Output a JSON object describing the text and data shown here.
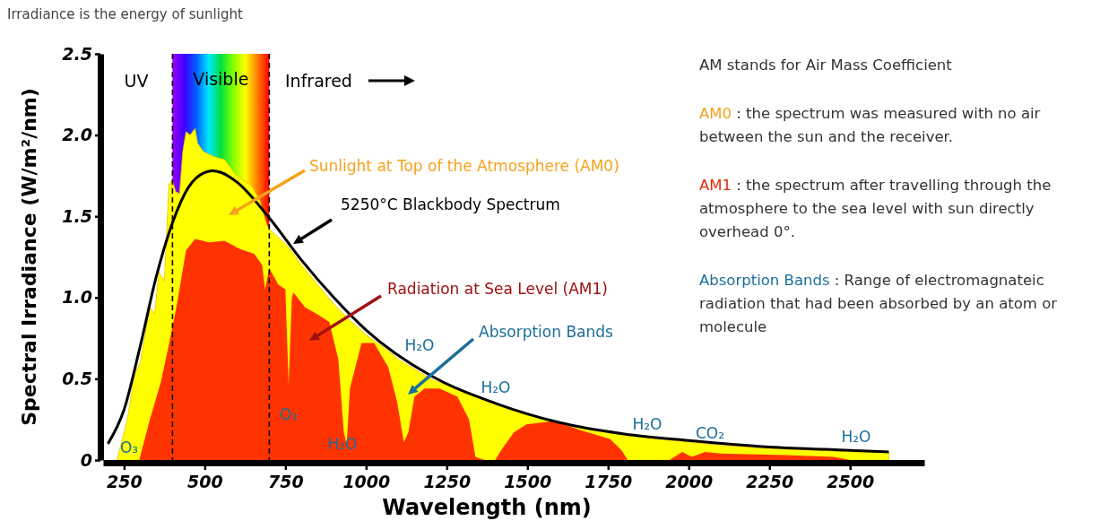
{
  "chart_data": {
    "type": "area",
    "title": "Irradiance is the energy of sunlight",
    "xlabel": "Wavelength (nm)",
    "ylabel": "Spectral Irradiance (W/m²/nm)",
    "xlim": [
      185,
      2730
    ],
    "xticks": [
      250,
      500,
      750,
      1000,
      1250,
      1500,
      1750,
      2000,
      2250,
      2500
    ],
    "ylim": [
      0,
      2.5
    ],
    "yticks": [
      0,
      {
        "value": 0.5,
        "label": "0.5"
      },
      {
        "value": 1,
        "label": "1.0"
      },
      {
        "value": 1.5,
        "label": "1.5"
      },
      {
        "value": 2,
        "label": "2.0"
      },
      {
        "value": 2.5,
        "label": "2.5"
      }
    ],
    "bands": [
      {
        "axis": "x",
        "from": 400,
        "to": 700,
        "label": "Visible"
      }
    ],
    "ref_lines": [
      {
        "axis": "x",
        "value": 400,
        "line_style": "dashed"
      },
      {
        "axis": "x",
        "value": 700,
        "line_style": "dashed"
      }
    ],
    "series": [
      {
        "color": "#ffff00",
        "x": [
          228,
          260,
          283,
          300,
          330,
          345,
          358,
          375,
          389,
          400,
          410,
          422,
          432,
          442,
          455,
          470,
          478,
          495,
          514,
          540,
          561,
          580,
          597,
          620,
          644,
          670,
          692,
          700,
          756,
          800,
          850,
          900,
          950,
          1000,
          1070,
          1100,
          1150,
          1200,
          1300,
          1400,
          1500,
          1600,
          1700,
          1800,
          1900,
          2000,
          2100,
          2250,
          2400,
          2500,
          2620
        ],
        "values": [
          0,
          0.25,
          0.53,
          0.6,
          0.94,
          0.9,
          1.16,
          1.1,
          1.7,
          1.72,
          1.65,
          1.64,
          1.9,
          2.02,
          2.0,
          2.04,
          1.95,
          1.9,
          1.88,
          1.86,
          1.85,
          1.8,
          1.75,
          1.72,
          1.69,
          1.6,
          1.45,
          1.42,
          1.32,
          1.2,
          1.08,
          0.96,
          0.86,
          0.77,
          0.67,
          0.62,
          0.56,
          0.5,
          0.42,
          0.34,
          0.28,
          0.23,
          0.19,
          0.16,
          0.13,
          0.11,
          0.09,
          0.07,
          0.06,
          0.05,
          0.05
        ]
      },
      {
        "color": "#ff3300",
        "x": [
          297,
          330,
          364,
          390,
          414,
          442,
          470,
          514,
          561,
          608,
          653,
          678,
          687,
          700,
          728,
          750,
          760,
          770,
          775,
          811,
          847,
          886,
          914,
          931,
          940,
          950,
          986,
          1025,
          1069,
          1097,
          1117,
          1131,
          1150,
          1181,
          1228,
          1283,
          1319,
          1339,
          1367,
          1400,
          1422,
          1458,
          1497,
          1581,
          1672,
          1756,
          1792,
          1811,
          1940,
          1980,
          2010,
          2050,
          2100,
          2300,
          2450,
          2500
        ],
        "values": [
          0,
          0.25,
          0.48,
          0.72,
          0.96,
          1.29,
          1.36,
          1.34,
          1.35,
          1.3,
          1.27,
          1.2,
          1.05,
          1.18,
          1.08,
          1.05,
          0.46,
          1.0,
          1.03,
          0.94,
          0.9,
          0.85,
          0.62,
          0.17,
          0.1,
          0.44,
          0.72,
          0.72,
          0.57,
          0.35,
          0.11,
          0.17,
          0.39,
          0.44,
          0.44,
          0.39,
          0.25,
          0.02,
          0,
          0,
          0.07,
          0.17,
          0.22,
          0.24,
          0.18,
          0.13,
          0.06,
          0,
          0,
          0.05,
          0.02,
          0.05,
          0.04,
          0.03,
          0.02,
          0
        ]
      },
      {
        "type": "line",
        "color": "#000000",
        "x": [
          200,
          250,
          300,
          350,
          400,
          450,
          500,
          525,
          550,
          600,
          700,
          800,
          900,
          1000,
          1200,
          1400,
          1600,
          1800,
          2000,
          2250,
          2500,
          2620
        ],
        "values": [
          0.1,
          0.31,
          0.7,
          1.13,
          1.46,
          1.68,
          1.77,
          1.78,
          1.77,
          1.71,
          1.49,
          1.23,
          1.0,
          0.8,
          0.52,
          0.35,
          0.23,
          0.16,
          0.12,
          0.08,
          0.06,
          0.05
        ]
      }
    ],
    "annotations": [
      "UV",
      "Infrared",
      "Sunlight at Top of the Atmosphere (AM0)",
      "5250°C Blackbody Spectrum",
      "Radiation at Sea Level (AM1)",
      "Absorption Bands",
      "O₃",
      "O₂",
      "H₂O",
      "H₂O",
      "H₂O",
      "H₂O",
      "CO₂",
      "H₂O",
      "AM stands for Air Mass Coefficient",
      "AM0 : the spectrum was measured with no air between the sun and the receiver.",
      "AM1 : the spectrum after travelling through the atmosphere to the sea level with sun directly overhead 0°.",
      "Absorption Bands : Range of electromagnateic radiation that had been absorbed by an atom or molecule"
    ]
  }
}
